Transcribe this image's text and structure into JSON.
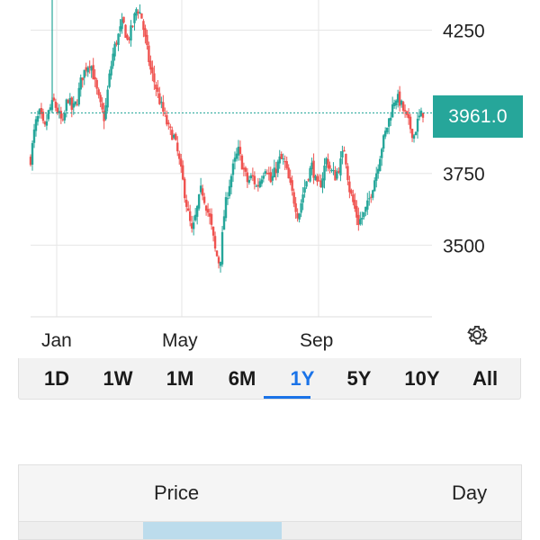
{
  "chart_data": {
    "type": "candlestick",
    "y_ticks": [
      "4250",
      "3750",
      "3500"
    ],
    "x_ticks": [
      "Jan",
      "May",
      "Sep"
    ],
    "ylim": [
      3250,
      4355
    ],
    "last_price": 3961.0,
    "last_price_label": "3961.0",
    "colors": {
      "up": "#26a69a",
      "down": "#ef5350",
      "grid": "#e6e6e6",
      "price_line": "#26a69a"
    },
    "grid": true,
    "series_close": [
      [
        0,
        3800
      ],
      [
        4,
        3920
      ],
      [
        8,
        3960
      ],
      [
        12,
        3900
      ],
      [
        16,
        3970
      ],
      [
        20,
        4000
      ],
      [
        24,
        3960
      ],
      [
        28,
        3920
      ],
      [
        32,
        4020
      ],
      [
        36,
        3970
      ],
      [
        40,
        4000
      ],
      [
        44,
        4080
      ],
      [
        48,
        4120
      ],
      [
        52,
        4140
      ],
      [
        56,
        4060
      ],
      [
        60,
        3990
      ],
      [
        64,
        3940
      ],
      [
        68,
        4080
      ],
      [
        72,
        4180
      ],
      [
        76,
        4230
      ],
      [
        80,
        4280
      ],
      [
        84,
        4210
      ],
      [
        88,
        4260
      ],
      [
        92,
        4330
      ],
      [
        96,
        4300
      ],
      [
        100,
        4200
      ],
      [
        104,
        4110
      ],
      [
        108,
        4060
      ],
      [
        112,
        4000
      ],
      [
        116,
        3950
      ],
      [
        120,
        3900
      ],
      [
        124,
        3880
      ],
      [
        128,
        3810
      ],
      [
        132,
        3720
      ],
      [
        136,
        3620
      ],
      [
        140,
        3540
      ],
      [
        144,
        3620
      ],
      [
        148,
        3700
      ],
      [
        152,
        3640
      ],
      [
        156,
        3580
      ],
      [
        160,
        3480
      ],
      [
        164,
        3430
      ],
      [
        168,
        3620
      ],
      [
        172,
        3710
      ],
      [
        176,
        3780
      ],
      [
        180,
        3830
      ],
      [
        184,
        3770
      ],
      [
        188,
        3720
      ],
      [
        192,
        3740
      ],
      [
        196,
        3700
      ],
      [
        200,
        3740
      ],
      [
        204,
        3780
      ],
      [
        208,
        3720
      ],
      [
        212,
        3760
      ],
      [
        216,
        3800
      ],
      [
        220,
        3790
      ],
      [
        224,
        3720
      ],
      [
        228,
        3660
      ],
      [
        232,
        3600
      ],
      [
        236,
        3680
      ],
      [
        240,
        3740
      ],
      [
        244,
        3780
      ],
      [
        248,
        3700
      ],
      [
        252,
        3720
      ],
      [
        256,
        3800
      ],
      [
        260,
        3760
      ],
      [
        264,
        3740
      ],
      [
        268,
        3780
      ],
      [
        272,
        3840
      ],
      [
        276,
        3700
      ],
      [
        280,
        3640
      ],
      [
        284,
        3580
      ],
      [
        288,
        3600
      ],
      [
        292,
        3640
      ],
      [
        296,
        3700
      ],
      [
        300,
        3760
      ],
      [
        304,
        3840
      ],
      [
        308,
        3900
      ],
      [
        312,
        3960
      ],
      [
        316,
        4020
      ],
      [
        320,
        4000
      ],
      [
        324,
        3960
      ],
      [
        328,
        3920
      ],
      [
        332,
        3880
      ],
      [
        336,
        3940
      ],
      [
        340,
        3961
      ]
    ]
  },
  "range_tabs": {
    "items": [
      "1D",
      "1W",
      "1M",
      "6M",
      "1Y",
      "5Y",
      "10Y",
      "All"
    ],
    "active": "1Y"
  },
  "table": {
    "headers": [
      "Price",
      "Day"
    ]
  },
  "icons": {
    "settings": "gear-icon"
  }
}
